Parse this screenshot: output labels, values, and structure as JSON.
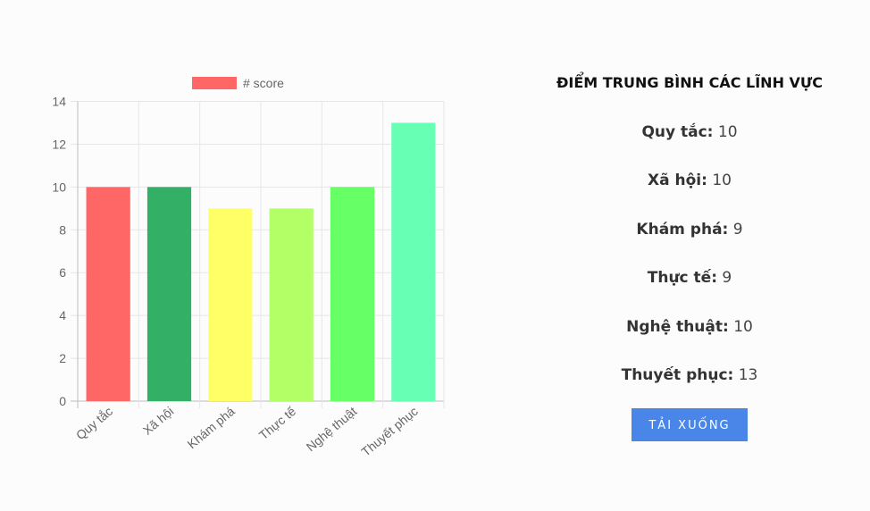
{
  "chart_data": {
    "type": "bar",
    "categories": [
      "Quy tắc",
      "Xã hội",
      "Khám phá",
      "Thực tế",
      "Nghệ thuật",
      "Thuyết phục"
    ],
    "series": [
      {
        "name": "# score",
        "values": [
          10,
          10,
          9,
          9,
          10,
          13
        ],
        "colors": [
          "#ff6666",
          "#33b066",
          "#ffff66",
          "#b3ff66",
          "#66ff66",
          "#66ffb3"
        ]
      }
    ],
    "yticks": [
      0,
      2,
      4,
      6,
      8,
      10,
      12,
      14
    ],
    "ylim": [
      0,
      14
    ],
    "grid": true,
    "legend": "top",
    "legend_color": "#ff6666"
  },
  "summary": {
    "title": "ĐIỂM TRUNG BÌNH CÁC LĨNH VỰC",
    "items": [
      {
        "label": "Quy tắc:",
        "value": "10"
      },
      {
        "label": "Xã hội:",
        "value": "10"
      },
      {
        "label": "Khám phá:",
        "value": "9"
      },
      {
        "label": "Thực tế:",
        "value": "9"
      },
      {
        "label": "Nghệ thuật:",
        "value": "10"
      },
      {
        "label": "Thuyết phục:",
        "value": "13"
      }
    ],
    "download_label": "TẢI XUỐNG",
    "button_color": "#4a86e8"
  }
}
